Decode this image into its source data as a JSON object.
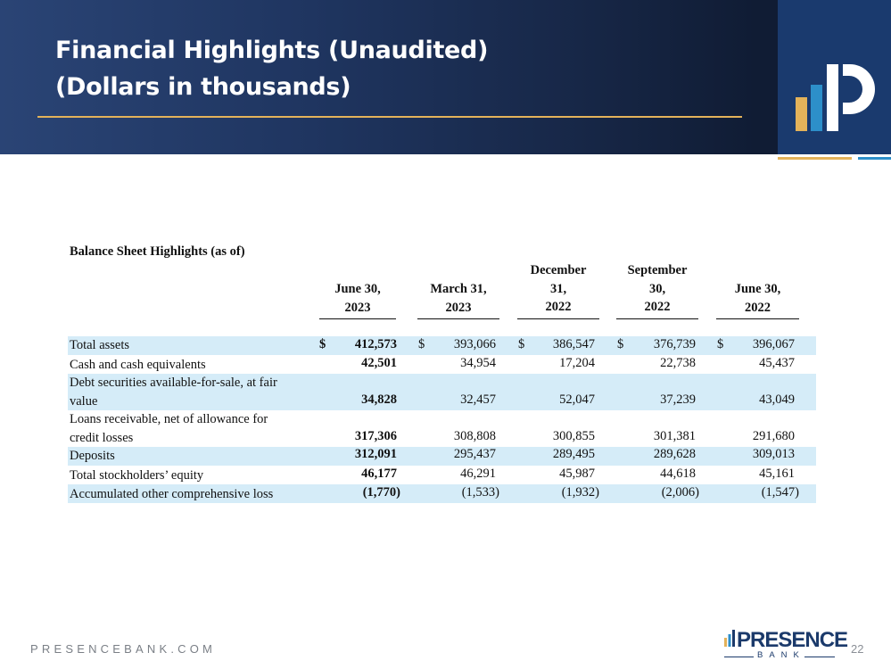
{
  "header": {
    "title_line1": "Financial Highlights (Unaudited)",
    "title_line2": "(Dollars in thousands)"
  },
  "colors": {
    "header_dark": "#172747",
    "logo_blue": "#1a3a6e",
    "gold": "#e3b25a",
    "light_blue": "#2d8fc9",
    "row_shade": "#d5ecf8"
  },
  "table": {
    "title": "Balance Sheet Highlights (as of)",
    "columns": [
      {
        "lines": [
          "June 30,",
          "2023"
        ]
      },
      {
        "lines": [
          "March 31,",
          "2023"
        ]
      },
      {
        "lines": [
          "December",
          "31,",
          "2022"
        ]
      },
      {
        "lines": [
          "September",
          "30,",
          "2022"
        ]
      },
      {
        "lines": [
          "June 30,",
          "2022"
        ]
      }
    ],
    "rows": [
      {
        "label_lines": [
          "Total assets"
        ],
        "values": [
          "412,573",
          "393,066",
          "386,547",
          "376,739",
          "396,067"
        ],
        "dollar": "$"
      },
      {
        "label_lines": [
          "Cash and cash equivalents"
        ],
        "values": [
          "42,501",
          "34,954",
          "17,204",
          "22,738",
          "45,437"
        ]
      },
      {
        "label_lines": [
          "Debt securities available-for-sale, at fair",
          "value"
        ],
        "values": [
          "34,828",
          "32,457",
          "52,047",
          "37,239",
          "43,049"
        ]
      },
      {
        "label_lines": [
          "Loans receivable, net of allowance for",
          "credit losses"
        ],
        "values": [
          "317,306",
          "308,808",
          "300,855",
          "301,381",
          "291,680"
        ]
      },
      {
        "label_lines": [
          "Deposits"
        ],
        "values": [
          "312,091",
          "295,437",
          "289,495",
          "289,628",
          "309,013"
        ]
      },
      {
        "label_lines": [
          "Total stockholders’ equity"
        ],
        "values": [
          "46,177",
          "46,291",
          "45,987",
          "44,618",
          "45,161"
        ]
      },
      {
        "label_lines": [
          "Accumulated other comprehensive loss"
        ],
        "values": [
          "(1,770)",
          "(1,533)",
          "(1,932)",
          "(2,006)",
          "(1,547)"
        ]
      }
    ]
  },
  "footer": {
    "url": "PRESENCEBANK.COM",
    "brand": "PRESENCE",
    "brand_sub": "BANK",
    "page_number": "22"
  },
  "icons": {
    "header_logo": "presence-p-logo-icon",
    "footer_logo": "presence-bars-icon"
  }
}
